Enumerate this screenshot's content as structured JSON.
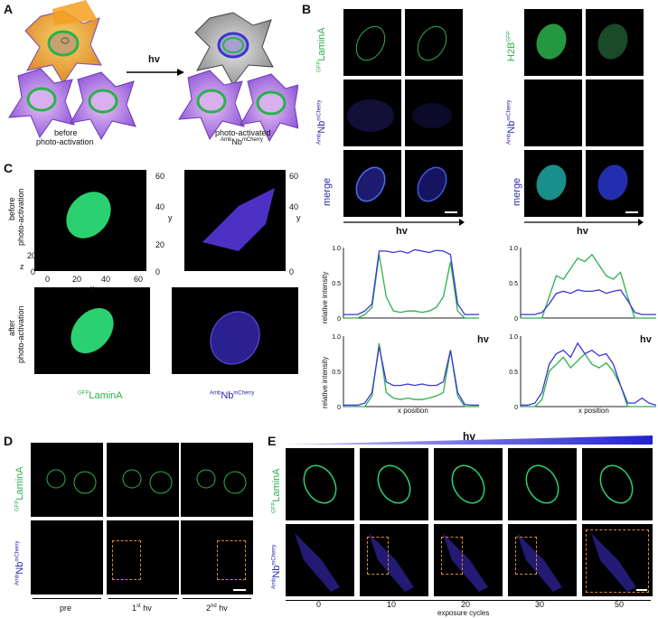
{
  "panels": {
    "A": "A",
    "B": "B",
    "C": "C",
    "D": "D",
    "E": "E"
  },
  "panelA": {
    "arrow_label": "hv",
    "before_line1": "before",
    "before_line2": "photo-activation",
    "after_line1": "photo-activated",
    "after_sup": "Amb",
    "after_main": "Nb",
    "after_sup2": "mCherry"
  },
  "labels": {
    "gfp_sup": "GFP",
    "lamina": "LaminA",
    "h2b": "H2B",
    "h2b_sup": "GFP",
    "amb_sup": "Amb",
    "nb": "Nb",
    "mcherry_sup": "mCherry",
    "merge": "merge",
    "hv": "hv"
  },
  "panelC": {
    "before": "before",
    "photo_activation": "photo-activation",
    "after": "after",
    "x": "x",
    "y": "y",
    "z": "z",
    "xticks": [
      "0",
      "20",
      "40",
      "60"
    ],
    "yticks": [
      "0",
      "20",
      "40",
      "60"
    ],
    "zticks": [
      "20",
      "0"
    ],
    "lamina_sup": "GFP",
    "lamina_main": "LaminA",
    "nb_sup": "Amb",
    "nb_main": "Nb",
    "nb_sup2": "mCherry"
  },
  "panelB_plots": {
    "ylabel": "relative intensity",
    "xlabel": "x position",
    "yticks": [
      "1.0",
      "0.5",
      "0"
    ]
  },
  "panelD": {
    "pre": "pre",
    "hv1": "1",
    "hv1_sup": "st",
    "hv1_rest": " hv",
    "hv2": "2",
    "hv2_sup": "nd",
    "hv2_rest": " hv"
  },
  "panelE": {
    "hv": "hv",
    "ticks": [
      "0",
      "10",
      "20",
      "30",
      "50"
    ],
    "xlabel": "exposure cycles"
  },
  "colors": {
    "green": "#2bb14c",
    "blue": "#3a36d6",
    "orange": "#e08a2a",
    "purple": "#a06ae0"
  },
  "chart_data": [
    {
      "type": "line",
      "panel": "B top-left",
      "ylabel": "relative intensity",
      "ylim": [
        0,
        1.0
      ],
      "series": [
        {
          "color": "green",
          "values": [
            0,
            0,
            0,
            0.05,
            0.15,
            0.9,
            0.3,
            0.1,
            0.08,
            0.1,
            0.1,
            0.08,
            0.1,
            0.15,
            0.3,
            0.8,
            0.1,
            0,
            0,
            0
          ]
        },
        {
          "color": "blue",
          "values": [
            0.05,
            0.05,
            0.05,
            0.1,
            0.2,
            0.95,
            0.95,
            0.93,
            0.95,
            0.92,
            0.97,
            0.95,
            0.93,
            0.96,
            0.95,
            0.9,
            0.2,
            0.05,
            0.05,
            0.05
          ]
        }
      ]
    },
    {
      "type": "line",
      "panel": "B top-right",
      "ylim": [
        0,
        1.0
      ],
      "series": [
        {
          "color": "green",
          "values": [
            0,
            0,
            0,
            0,
            0.3,
            0.6,
            0.55,
            0.7,
            0.85,
            0.8,
            0.9,
            0.75,
            0.6,
            0.55,
            0.65,
            0.3,
            0,
            0,
            0,
            0
          ]
        },
        {
          "color": "blue",
          "values": [
            0.05,
            0.05,
            0.05,
            0.08,
            0.2,
            0.35,
            0.38,
            0.35,
            0.4,
            0.38,
            0.38,
            0.4,
            0.35,
            0.38,
            0.4,
            0.25,
            0.08,
            0.05,
            0.05,
            0.05
          ]
        }
      ]
    },
    {
      "type": "line",
      "panel": "B bottom-left",
      "ylabel": "relative intensity",
      "xlabel": "x position",
      "ylim": [
        0,
        1.0
      ],
      "series": [
        {
          "color": "green",
          "values": [
            0,
            0,
            0,
            0,
            0.15,
            0.9,
            0.2,
            0.12,
            0.1,
            0.12,
            0.1,
            0.1,
            0.12,
            0.15,
            0.2,
            0.8,
            0.15,
            0,
            0,
            0
          ]
        },
        {
          "color": "blue",
          "values": [
            0.02,
            0.02,
            0.02,
            0.05,
            0.2,
            0.85,
            0.35,
            0.3,
            0.3,
            0.32,
            0.3,
            0.32,
            0.3,
            0.3,
            0.35,
            0.8,
            0.2,
            0.03,
            0.02,
            0.02
          ]
        }
      ]
    },
    {
      "type": "line",
      "panel": "B bottom-right",
      "xlabel": "x position",
      "ylim": [
        0,
        1.0
      ],
      "series": [
        {
          "color": "green",
          "values": [
            0,
            0,
            0,
            0.1,
            0.5,
            0.6,
            0.7,
            0.55,
            0.65,
            0.75,
            0.6,
            0.55,
            0.62,
            0.5,
            0.3,
            0,
            0,
            0,
            0,
            0
          ]
        },
        {
          "color": "blue",
          "values": [
            0.02,
            0.02,
            0.05,
            0.2,
            0.6,
            0.75,
            0.8,
            0.7,
            0.9,
            0.75,
            0.8,
            0.72,
            0.75,
            0.6,
            0.3,
            0.05,
            0.05,
            0.12,
            0.05,
            0.02
          ]
        }
      ]
    }
  ]
}
